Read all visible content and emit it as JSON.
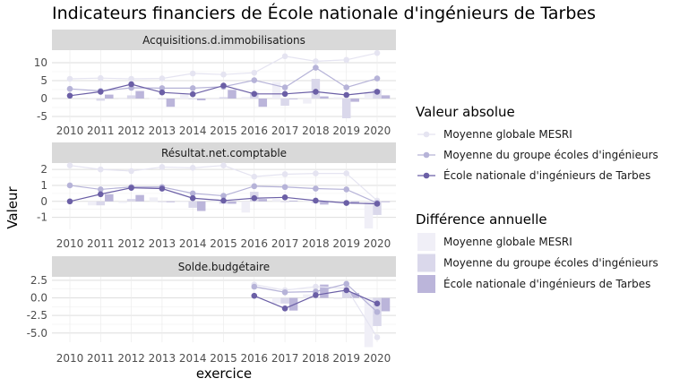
{
  "chart_data": {
    "type": "line",
    "title": "Indicateurs financiers de École nationale d'ingénieurs de Tarbes",
    "xlabel": "exercice",
    "ylabel": "Valeur",
    "x": [
      2010,
      2011,
      2012,
      2013,
      2014,
      2015,
      2016,
      2017,
      2018,
      2019,
      2020
    ],
    "legend_line_title": "Valeur absolue",
    "legend_bar_title": "Différence annuelle",
    "series_names": [
      "Moyenne globale MESRI",
      "Moyenne du groupe écoles d'ingénieurs",
      "École nationale d'ingénieurs de Tarbes"
    ],
    "colors": [
      "#e5e4f1",
      "#b6b3d8",
      "#6b5fa6"
    ],
    "bar_colors": [
      "#f0eff7",
      "#dad8eb",
      "#bbb5da"
    ],
    "panels": [
      {
        "strip": "Acquisitions.d.immobilisations",
        "ylim": [
          -6.5,
          13.5
        ],
        "yticks": [
          -5,
          0,
          5,
          10
        ],
        "ytick_labels": [
          "-5",
          "0",
          "5",
          "10"
        ],
        "series": [
          {
            "name": "Moyenne globale MESRI",
            "values": [
              5.5,
              5.7,
              5.5,
              5.6,
              7.0,
              6.7,
              7.2,
              11.8,
              10.4,
              10.8,
              12.7
            ],
            "diff": [
              null,
              0.2,
              -0.2,
              0.1,
              1.4,
              -0.3,
              0.5,
              4.6,
              -1.4,
              0.4,
              1.9
            ]
          },
          {
            "name": "Moyenne du groupe écoles d'ingénieurs",
            "values": [
              2.7,
              2.1,
              3.0,
              2.9,
              2.9,
              3.3,
              5.1,
              3.1,
              8.6,
              3.1,
              5.6
            ],
            "diff": [
              null,
              -0.6,
              0.9,
              -0.1,
              0.0,
              0.4,
              1.8,
              -2.0,
              5.5,
              -5.5,
              2.5
            ]
          },
          {
            "name": "École nationale d'ingénieurs de Tarbes",
            "values": [
              0.8,
              1.9,
              4.0,
              1.7,
              1.2,
              3.6,
              1.3,
              1.3,
              1.9,
              1.0,
              1.9
            ],
            "diff": [
              null,
              1.1,
              2.1,
              -2.3,
              -0.5,
              2.4,
              -2.3,
              0.0,
              0.6,
              -0.9,
              0.9
            ]
          }
        ]
      },
      {
        "strip": "Résultat.net.comptable",
        "ylim": [
          -1.75,
          2.4
        ],
        "yticks": [
          -1,
          0,
          1,
          2
        ],
        "ytick_labels": [
          "-1",
          "0",
          "1",
          "2"
        ],
        "series": [
          {
            "name": "Moyenne globale MESRI",
            "values": [
              2.25,
              2.0,
              1.9,
              2.15,
              2.1,
              2.25,
              1.55,
              1.7,
              1.75,
              1.75,
              0.05
            ],
            "diff": [
              null,
              -0.25,
              -0.1,
              0.25,
              -0.05,
              0.15,
              -0.7,
              0.15,
              0.05,
              0.0,
              -1.7
            ]
          },
          {
            "name": "Moyenne du groupe écoles d'ingénieurs",
            "values": [
              1.0,
              0.75,
              0.9,
              0.9,
              0.5,
              0.35,
              0.95,
              0.9,
              0.8,
              0.75,
              -0.1
            ],
            "diff": [
              null,
              -0.25,
              0.15,
              0.0,
              -0.4,
              -0.15,
              0.6,
              -0.05,
              -0.1,
              -0.05,
              -0.85
            ]
          },
          {
            "name": "École nationale d'ingénieurs de Tarbes",
            "values": [
              0.0,
              0.45,
              0.85,
              0.8,
              0.2,
              0.05,
              0.2,
              0.25,
              0.05,
              -0.1,
              -0.15
            ],
            "diff": [
              null,
              0.45,
              0.4,
              -0.05,
              -0.6,
              -0.15,
              0.15,
              0.05,
              -0.2,
              -0.15,
              -0.05
            ]
          }
        ]
      },
      {
        "strip": "Solde.budgétaire",
        "ylim": [
          -6.3,
          3.0
        ],
        "yticks": [
          -5,
          -2.5,
          0,
          2.5
        ],
        "ytick_labels": [
          "-5.0",
          "-2.5",
          "0.0",
          "2.5"
        ],
        "series": [
          {
            "name": "Moyenne globale MESRI",
            "values": [
              null,
              null,
              null,
              null,
              null,
              null,
              1.9,
              1.1,
              1.6,
              1.4,
              -5.6
            ],
            "diff": [
              null,
              null,
              null,
              null,
              null,
              null,
              null,
              -0.8,
              0.5,
              -0.2,
              -7.0
            ]
          },
          {
            "name": "Moyenne du groupe écoles d'ingénieurs",
            "values": [
              null,
              null,
              null,
              null,
              null,
              null,
              1.6,
              0.8,
              0.9,
              2.0,
              -2.0
            ],
            "diff": [
              null,
              null,
              null,
              null,
              null,
              null,
              null,
              -0.8,
              0.1,
              1.1,
              -4.0
            ]
          },
          {
            "name": "École nationale d'ingénieurs de Tarbes",
            "values": [
              null,
              null,
              null,
              null,
              null,
              null,
              0.3,
              -1.5,
              0.4,
              1.1,
              -0.8
            ],
            "diff": [
              null,
              null,
              null,
              null,
              null,
              null,
              null,
              -1.8,
              1.9,
              0.7,
              -1.9
            ]
          }
        ]
      }
    ]
  }
}
